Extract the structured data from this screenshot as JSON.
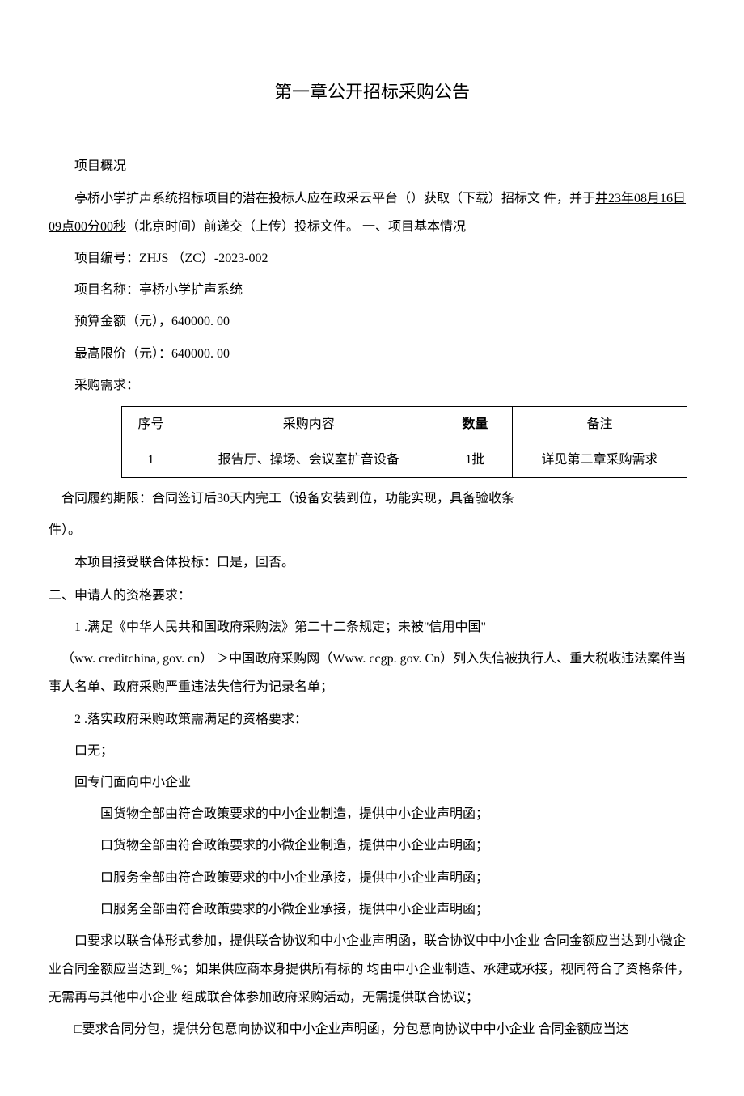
{
  "title": "第一章公开招标采购公告",
  "overview_label": "项目概况",
  "intro_part1": "亭桥小学扩声系统招标项目的潜在投标人应在政采云平台（）获取（下载）招标文 件，并于",
  "intro_underlined": "井23年08月16日09点00分00秒",
  "intro_part2": "（北京时间）前递交（上传）投标文件。 一、项目基本情况",
  "project_number": "项目编号：ZHJS （ZC）-2023-002",
  "project_name": "项目名称：亭桥小学扩声系统",
  "budget": "预算金额（元），640000. 00",
  "max_price": "最高限价（元）：640000. 00",
  "req_label": "采购需求：",
  "table": {
    "headers": {
      "seq": "序号",
      "content": "采购内容",
      "qty": "数量",
      "note": "备注"
    },
    "row": {
      "seq": "1",
      "content": "报告厅、操场、会议室扩音设备",
      "qty": "1批",
      "note": "详见第二章采购需求"
    }
  },
  "contract_period_1": "合同履约期限：合同签订后30天内完工（设备安装到位，功能实现，具备验收条",
  "contract_period_2": "件）。",
  "consortium": "本项目接受联合体投标：口是，回否。",
  "section2_title": "二、申请人的资格要求：",
  "req2_1": "1 .满足《中华人民共和国政府采购法》第二十二条规定；未被\"信用中国\"",
  "req2_1b": "（ww. creditchina, gov. cn） ＞中国政府采购网（Www. ccgp. gov. Cn）列入失信被执行人、重大税收违法案件当事人名单、政府采购严重违法失信行为记录名单；",
  "req2_2": "2 .落实政府采购政策需满足的资格要求：",
  "opt_none": "口无；",
  "opt_sme": "回专门面向中小企业",
  "opt_sme_1": "国货物全部由符合政策要求的中小企业制造，提供中小企业声明函；",
  "opt_sme_2": "口货物全部由符合政策要求的小微企业制造，提供中小企业声明函；",
  "opt_sme_3": "口服务全部由符合政策要求的中小企业承接，提供中小企业声明函；",
  "opt_sme_4": "口服务全部由符合政策要求的小微企业承接，提供中小企业声明函；",
  "opt_consortium": "口要求以联合体形式参加，提供联合协议和中小企业声明函，联合协议中中小企业 合同金额应当达到小微企业合同金额应当达到_%；如果供应商本身提供所有标的 均由中小企业制造、承建或承接，视同符合了资格条件，无需再与其他中小企业 组成联合体参加政府采购活动，无需提供联合协议；",
  "opt_subcontract": "□要求合同分包，提供分包意向协议和中小企业声明函，分包意向协议中中小企业 合同金额应当达"
}
